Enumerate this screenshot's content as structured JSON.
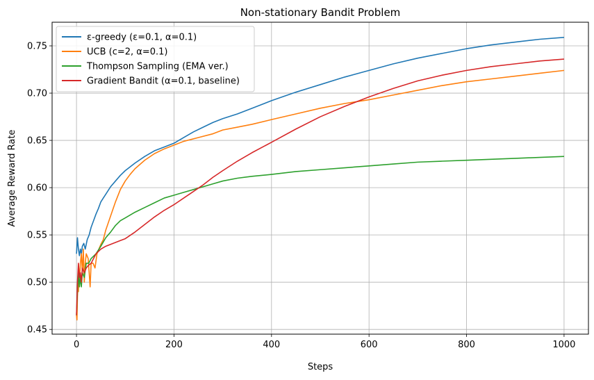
{
  "chart_data": {
    "type": "line",
    "title": "Non-stationary Bandit Problem",
    "xlabel": "Steps",
    "ylabel": "Average Reward Rate",
    "xlim": [
      -50,
      1050
    ],
    "ylim": [
      0.445,
      0.775
    ],
    "xticks": [
      0,
      200,
      400,
      600,
      800,
      1000
    ],
    "yticks": [
      0.45,
      0.5,
      0.55,
      0.6,
      0.65,
      0.7,
      0.75
    ],
    "xtick_labels": [
      "0",
      "200",
      "400",
      "600",
      "800",
      "1000"
    ],
    "ytick_labels": [
      "0.45",
      "0.50",
      "0.55",
      "0.60",
      "0.65",
      "0.70",
      "0.75"
    ],
    "grid": true,
    "legend_position": "upper-left",
    "series": [
      {
        "name": "ε-greedy (ε=0.1, α=0.1)",
        "color": "#1f77b4",
        "points": [
          [
            0,
            0.53
          ],
          [
            2,
            0.547
          ],
          [
            4,
            0.535
          ],
          [
            6,
            0.528
          ],
          [
            8,
            0.535
          ],
          [
            10,
            0.53
          ],
          [
            12,
            0.538
          ],
          [
            15,
            0.541
          ],
          [
            18,
            0.535
          ],
          [
            22,
            0.545
          ],
          [
            26,
            0.55
          ],
          [
            30,
            0.558
          ],
          [
            35,
            0.565
          ],
          [
            40,
            0.572
          ],
          [
            45,
            0.578
          ],
          [
            50,
            0.585
          ],
          [
            55,
            0.589
          ],
          [
            60,
            0.593
          ],
          [
            70,
            0.601
          ],
          [
            80,
            0.607
          ],
          [
            90,
            0.613
          ],
          [
            100,
            0.618
          ],
          [
            120,
            0.626
          ],
          [
            140,
            0.633
          ],
          [
            160,
            0.639
          ],
          [
            180,
            0.643
          ],
          [
            200,
            0.647
          ],
          [
            220,
            0.653
          ],
          [
            240,
            0.659
          ],
          [
            260,
            0.664
          ],
          [
            280,
            0.669
          ],
          [
            300,
            0.673
          ],
          [
            330,
            0.678
          ],
          [
            360,
            0.684
          ],
          [
            400,
            0.692
          ],
          [
            450,
            0.701
          ],
          [
            500,
            0.709
          ],
          [
            550,
            0.717
          ],
          [
            600,
            0.724
          ],
          [
            650,
            0.731
          ],
          [
            700,
            0.737
          ],
          [
            750,
            0.742
          ],
          [
            800,
            0.747
          ],
          [
            850,
            0.751
          ],
          [
            900,
            0.754
          ],
          [
            950,
            0.757
          ],
          [
            1000,
            0.759
          ]
        ]
      },
      {
        "name": "UCB (c=2, α=0.1)",
        "color": "#ff7f0e",
        "points": [
          [
            0,
            0.465
          ],
          [
            1,
            0.46
          ],
          [
            2,
            0.485
          ],
          [
            3,
            0.5
          ],
          [
            4,
            0.49
          ],
          [
            5,
            0.51
          ],
          [
            6,
            0.5
          ],
          [
            8,
            0.52
          ],
          [
            10,
            0.53
          ],
          [
            12,
            0.51
          ],
          [
            14,
            0.535
          ],
          [
            16,
            0.5
          ],
          [
            18,
            0.52
          ],
          [
            20,
            0.53
          ],
          [
            24,
            0.525
          ],
          [
            28,
            0.495
          ],
          [
            30,
            0.52
          ],
          [
            34,
            0.52
          ],
          [
            38,
            0.515
          ],
          [
            42,
            0.53
          ],
          [
            46,
            0.535
          ],
          [
            50,
            0.54
          ],
          [
            55,
            0.545
          ],
          [
            60,
            0.555
          ],
          [
            70,
            0.57
          ],
          [
            80,
            0.585
          ],
          [
            90,
            0.598
          ],
          [
            100,
            0.607
          ],
          [
            110,
            0.614
          ],
          [
            120,
            0.62
          ],
          [
            140,
            0.629
          ],
          [
            160,
            0.636
          ],
          [
            180,
            0.641
          ],
          [
            200,
            0.645
          ],
          [
            220,
            0.649
          ],
          [
            250,
            0.653
          ],
          [
            280,
            0.657
          ],
          [
            300,
            0.661
          ],
          [
            330,
            0.664
          ],
          [
            360,
            0.667
          ],
          [
            400,
            0.672
          ],
          [
            450,
            0.678
          ],
          [
            500,
            0.684
          ],
          [
            550,
            0.689
          ],
          [
            600,
            0.693
          ],
          [
            650,
            0.698
          ],
          [
            700,
            0.703
          ],
          [
            750,
            0.708
          ],
          [
            800,
            0.712
          ],
          [
            850,
            0.715
          ],
          [
            900,
            0.718
          ],
          [
            950,
            0.721
          ],
          [
            1000,
            0.724
          ]
        ]
      },
      {
        "name": "Thompson Sampling (EMA ver.)",
        "color": "#2ca02c",
        "points": [
          [
            0,
            0.465
          ],
          [
            2,
            0.49
          ],
          [
            4,
            0.51
          ],
          [
            6,
            0.495
          ],
          [
            8,
            0.505
          ],
          [
            10,
            0.495
          ],
          [
            12,
            0.51
          ],
          [
            16,
            0.505
          ],
          [
            20,
            0.52
          ],
          [
            25,
            0.52
          ],
          [
            30,
            0.525
          ],
          [
            40,
            0.53
          ],
          [
            50,
            0.538
          ],
          [
            60,
            0.547
          ],
          [
            70,
            0.553
          ],
          [
            80,
            0.56
          ],
          [
            90,
            0.565
          ],
          [
            100,
            0.568
          ],
          [
            120,
            0.574
          ],
          [
            140,
            0.579
          ],
          [
            160,
            0.584
          ],
          [
            180,
            0.589
          ],
          [
            200,
            0.592
          ],
          [
            220,
            0.595
          ],
          [
            240,
            0.598
          ],
          [
            260,
            0.601
          ],
          [
            280,
            0.604
          ],
          [
            300,
            0.607
          ],
          [
            330,
            0.61
          ],
          [
            360,
            0.612
          ],
          [
            400,
            0.614
          ],
          [
            450,
            0.617
          ],
          [
            500,
            0.619
          ],
          [
            550,
            0.621
          ],
          [
            600,
            0.623
          ],
          [
            650,
            0.625
          ],
          [
            700,
            0.627
          ],
          [
            750,
            0.628
          ],
          [
            800,
            0.629
          ],
          [
            850,
            0.63
          ],
          [
            900,
            0.631
          ],
          [
            950,
            0.632
          ],
          [
            1000,
            0.633
          ]
        ]
      },
      {
        "name": "Gradient Bandit (α=0.1, baseline)",
        "color": "#d62728",
        "points": [
          [
            0,
            0.465
          ],
          [
            2,
            0.5
          ],
          [
            4,
            0.52
          ],
          [
            6,
            0.505
          ],
          [
            8,
            0.51
          ],
          [
            10,
            0.5
          ],
          [
            12,
            0.515
          ],
          [
            16,
            0.51
          ],
          [
            20,
            0.515
          ],
          [
            25,
            0.518
          ],
          [
            30,
            0.52
          ],
          [
            40,
            0.53
          ],
          [
            50,
            0.535
          ],
          [
            60,
            0.538
          ],
          [
            70,
            0.54
          ],
          [
            80,
            0.542
          ],
          [
            90,
            0.544
          ],
          [
            100,
            0.546
          ],
          [
            120,
            0.553
          ],
          [
            140,
            0.561
          ],
          [
            160,
            0.569
          ],
          [
            180,
            0.576
          ],
          [
            200,
            0.582
          ],
          [
            220,
            0.589
          ],
          [
            240,
            0.596
          ],
          [
            260,
            0.603
          ],
          [
            280,
            0.611
          ],
          [
            300,
            0.618
          ],
          [
            330,
            0.628
          ],
          [
            360,
            0.637
          ],
          [
            400,
            0.648
          ],
          [
            450,
            0.662
          ],
          [
            500,
            0.675
          ],
          [
            550,
            0.686
          ],
          [
            600,
            0.696
          ],
          [
            650,
            0.705
          ],
          [
            700,
            0.713
          ],
          [
            750,
            0.719
          ],
          [
            800,
            0.724
          ],
          [
            850,
            0.728
          ],
          [
            900,
            0.731
          ],
          [
            950,
            0.734
          ],
          [
            1000,
            0.736
          ]
        ]
      }
    ]
  }
}
